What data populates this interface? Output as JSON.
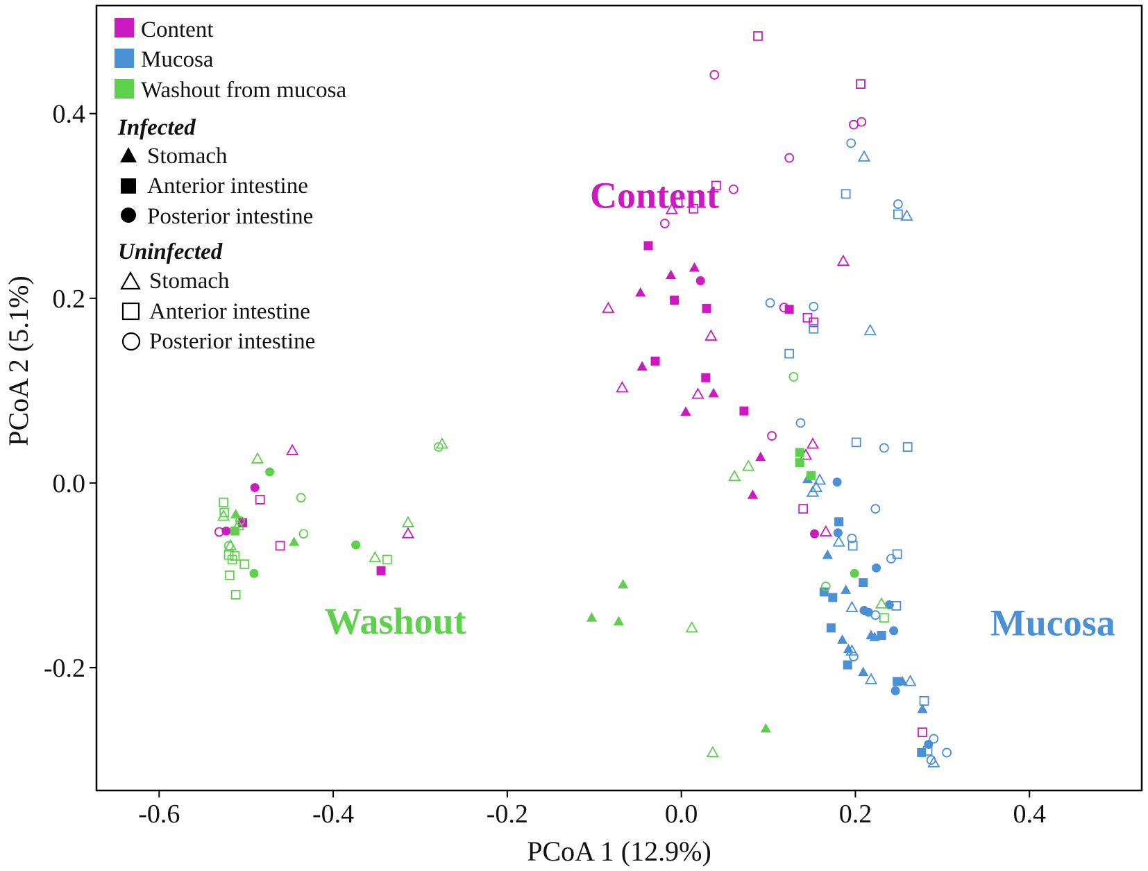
{
  "chart_data": {
    "type": "scatter",
    "title": "",
    "xlabel": "PCoA 1 (12.9%)",
    "ylabel": "PCoA 2 (5.1%)",
    "xlim": [
      -0.672,
      0.529
    ],
    "ylim": [
      -0.333,
      0.517
    ],
    "xticks": [
      -0.6,
      -0.4,
      -0.2,
      0.0,
      0.2,
      0.4
    ],
    "xtick_labels": [
      "-0.6",
      "-0.4",
      "-0.2",
      "0.0",
      "0.2",
      "0.4"
    ],
    "yticks": [
      0.4,
      0.2,
      0.0,
      -0.2
    ],
    "ytick_labels": [
      "0.4",
      "0.2",
      "0.0",
      "-0.2"
    ],
    "grid": false,
    "legend_position": "top-left",
    "colors": {
      "content": "#cc19c0",
      "mucosa": "#4a90d4",
      "washout": "#5fd04e"
    },
    "legend": {
      "groups": [
        {
          "key": "content",
          "label": "Content"
        },
        {
          "key": "mucosa",
          "label": "Mucosa"
        },
        {
          "key": "washout",
          "label": "Washout from mucosa"
        }
      ],
      "infected_title": "Infected",
      "uninfected_title": "Uninfected",
      "infected_items": [
        {
          "shape": "triangle",
          "label": "Stomach"
        },
        {
          "shape": "square",
          "label": "Anterior intestine"
        },
        {
          "shape": "circle",
          "label": "Posterior intestine"
        }
      ],
      "uninfected_items": [
        {
          "shape": "triangle",
          "label": "Stomach"
        },
        {
          "shape": "square",
          "label": "Anterior intestine"
        },
        {
          "shape": "circle",
          "label": "Posterior intestine"
        }
      ]
    },
    "annotations": [
      {
        "text": "Content",
        "group": "content",
        "x": -0.105,
        "y": 0.298
      },
      {
        "text": "Washout",
        "group": "washout",
        "x": -0.41,
        "y": -0.163
      },
      {
        "text": "Mucosa",
        "group": "mucosa",
        "x": 0.355,
        "y": -0.165
      }
    ],
    "series": [
      {
        "group": "content",
        "shape": "triangle",
        "filled": true,
        "points": [
          [
            -0.012,
            0.225
          ],
          [
            0.015,
            0.233
          ],
          [
            -0.047,
            0.206
          ],
          [
            -0.045,
            0.126
          ],
          [
            0.037,
            0.097
          ],
          [
            0.005,
            0.077
          ],
          [
            0.091,
            0.028
          ],
          [
            0.082,
            -0.013
          ]
        ]
      },
      {
        "group": "content",
        "shape": "square",
        "filled": true,
        "points": [
          [
            -0.038,
            0.257
          ],
          [
            -0.008,
            0.198
          ],
          [
            0.029,
            0.189
          ],
          [
            -0.03,
            0.132
          ],
          [
            0.028,
            0.114
          ],
          [
            0.072,
            0.078
          ],
          [
            0.124,
            0.188
          ],
          [
            -0.504,
            -0.043
          ],
          [
            -0.345,
            -0.095
          ]
        ]
      },
      {
        "group": "content",
        "shape": "circle",
        "filled": true,
        "points": [
          [
            0.022,
            0.219
          ],
          [
            0.153,
            -0.055
          ],
          [
            -0.49,
            -0.005
          ],
          [
            -0.523,
            -0.052
          ]
        ]
      },
      {
        "group": "content",
        "shape": "triangle",
        "filled": false,
        "points": [
          [
            -0.084,
            0.189
          ],
          [
            -0.011,
            0.296
          ],
          [
            0.034,
            0.159
          ],
          [
            -0.068,
            0.103
          ],
          [
            0.019,
            0.096
          ],
          [
            0.151,
            0.042
          ],
          [
            0.143,
            0.03
          ],
          [
            0.186,
            0.24
          ],
          [
            0.166,
            -0.053
          ],
          [
            -0.447,
            0.035
          ],
          [
            -0.314,
            -0.055
          ]
        ]
      },
      {
        "group": "content",
        "shape": "square",
        "filled": false,
        "points": [
          [
            0.088,
            0.484
          ],
          [
            0.206,
            0.432
          ],
          [
            -0.004,
            0.303
          ],
          [
            0.014,
            0.297
          ],
          [
            0.04,
            0.322
          ],
          [
            0.145,
            0.179
          ],
          [
            0.152,
            0.174
          ],
          [
            0.14,
            -0.028
          ],
          [
            -0.461,
            -0.068
          ],
          [
            -0.484,
            -0.018
          ],
          [
            0.277,
            -0.27
          ]
        ]
      },
      {
        "group": "content",
        "shape": "circle",
        "filled": false,
        "points": [
          [
            0.038,
            0.442
          ],
          [
            0.198,
            0.388
          ],
          [
            0.207,
            0.391
          ],
          [
            0.124,
            0.352
          ],
          [
            0.06,
            0.318
          ],
          [
            -0.019,
            0.281
          ],
          [
            0.104,
            0.051
          ],
          [
            0.118,
            0.19
          ],
          [
            -0.531,
            -0.053
          ]
        ]
      },
      {
        "group": "mucosa",
        "shape": "triangle",
        "filled": true,
        "points": [
          [
            0.145,
            0.004
          ],
          [
            0.168,
            -0.078
          ],
          [
            0.189,
            -0.116
          ],
          [
            0.185,
            -0.17
          ],
          [
            0.192,
            -0.18
          ],
          [
            0.218,
            -0.165
          ],
          [
            0.222,
            -0.167
          ],
          [
            0.209,
            -0.205
          ],
          [
            0.254,
            -0.215
          ],
          [
            0.277,
            -0.245
          ]
        ]
      },
      {
        "group": "mucosa",
        "shape": "square",
        "filled": true,
        "points": [
          [
            0.181,
            -0.042
          ],
          [
            0.164,
            -0.118
          ],
          [
            0.174,
            -0.124
          ],
          [
            0.209,
            -0.108
          ],
          [
            0.172,
            -0.157
          ],
          [
            0.191,
            -0.197
          ],
          [
            0.23,
            -0.165
          ],
          [
            0.248,
            -0.215
          ],
          [
            0.276,
            -0.292
          ]
        ]
      },
      {
        "group": "mucosa",
        "shape": "circle",
        "filled": true,
        "points": [
          [
            0.179,
            0.001
          ],
          [
            0.18,
            -0.054
          ],
          [
            0.224,
            -0.092
          ],
          [
            0.21,
            -0.138
          ],
          [
            0.215,
            -0.14
          ],
          [
            0.239,
            -0.132
          ],
          [
            0.244,
            -0.16
          ],
          [
            0.246,
            -0.225
          ],
          [
            0.284,
            -0.283
          ]
        ]
      },
      {
        "group": "mucosa",
        "shape": "triangle",
        "filled": false,
        "points": [
          [
            0.21,
            0.353
          ],
          [
            0.259,
            0.289
          ],
          [
            0.217,
            0.165
          ],
          [
            0.159,
            0.003
          ],
          [
            0.151,
            -0.01
          ],
          [
            0.155,
            -0.005
          ],
          [
            0.181,
            -0.064
          ],
          [
            0.196,
            -0.135
          ],
          [
            0.196,
            -0.182
          ],
          [
            0.218,
            -0.213
          ],
          [
            0.263,
            -0.215
          ],
          [
            0.29,
            -0.303
          ]
        ]
      },
      {
        "group": "mucosa",
        "shape": "square",
        "filled": false,
        "points": [
          [
            0.189,
            0.313
          ],
          [
            0.249,
            0.291
          ],
          [
            0.152,
            0.167
          ],
          [
            0.124,
            0.14
          ],
          [
            0.201,
            0.044
          ],
          [
            0.26,
            0.039
          ],
          [
            0.197,
            -0.068
          ],
          [
            0.248,
            -0.077
          ],
          [
            0.247,
            -0.133
          ],
          [
            0.279,
            -0.236
          ],
          [
            0.283,
            -0.29
          ]
        ]
      },
      {
        "group": "mucosa",
        "shape": "circle",
        "filled": false,
        "points": [
          [
            0.195,
            0.368
          ],
          [
            0.249,
            0.302
          ],
          [
            0.102,
            0.195
          ],
          [
            0.152,
            0.191
          ],
          [
            0.137,
            0.065
          ],
          [
            0.233,
            0.038
          ],
          [
            0.223,
            -0.028
          ],
          [
            0.196,
            -0.06
          ],
          [
            0.241,
            -0.082
          ],
          [
            0.223,
            -0.143
          ],
          [
            0.198,
            -0.188
          ],
          [
            0.29,
            -0.277
          ],
          [
            0.287,
            -0.3
          ],
          [
            0.305,
            -0.292
          ]
        ]
      },
      {
        "group": "washout",
        "shape": "triangle",
        "filled": true,
        "points": [
          [
            -0.512,
            -0.034
          ],
          [
            -0.445,
            -0.064
          ],
          [
            -0.103,
            -0.146
          ],
          [
            -0.072,
            -0.15
          ],
          [
            -0.067,
            -0.11
          ],
          [
            0.097,
            -0.266
          ]
        ]
      },
      {
        "group": "washout",
        "shape": "square",
        "filled": true,
        "points": [
          [
            -0.513,
            -0.052
          ],
          [
            0.136,
            0.033
          ],
          [
            0.136,
            0.022
          ],
          [
            0.149,
            0.008
          ]
        ]
      },
      {
        "group": "washout",
        "shape": "circle",
        "filled": true,
        "points": [
          [
            -0.473,
            0.012
          ],
          [
            -0.374,
            -0.067
          ],
          [
            -0.491,
            -0.098
          ],
          [
            0.199,
            -0.098
          ]
        ]
      },
      {
        "group": "washout",
        "shape": "triangle",
        "filled": false,
        "points": [
          [
            -0.487,
            0.026
          ],
          [
            -0.518,
            -0.068
          ],
          [
            -0.509,
            -0.046
          ],
          [
            -0.526,
            -0.036
          ],
          [
            -0.352,
            -0.081
          ],
          [
            -0.314,
            -0.043
          ],
          [
            -0.275,
            0.042
          ],
          [
            0.061,
            0.007
          ],
          [
            0.077,
            0.018
          ],
          [
            0.012,
            -0.157
          ],
          [
            0.036,
            -0.292
          ],
          [
            0.23,
            -0.131
          ]
        ]
      },
      {
        "group": "washout",
        "shape": "square",
        "filled": false,
        "points": [
          [
            -0.526,
            -0.021
          ],
          [
            -0.525,
            -0.032
          ],
          [
            -0.52,
            -0.078
          ],
          [
            -0.513,
            -0.079
          ],
          [
            -0.516,
            -0.083
          ],
          [
            -0.519,
            -0.1
          ],
          [
            -0.512,
            -0.121
          ],
          [
            -0.502,
            -0.088
          ],
          [
            -0.338,
            -0.083
          ],
          [
            0.233,
            -0.146
          ]
        ]
      },
      {
        "group": "washout",
        "shape": "circle",
        "filled": false,
        "points": [
          [
            -0.437,
            -0.016
          ],
          [
            -0.434,
            -0.055
          ],
          [
            -0.279,
            0.039
          ],
          [
            -0.52,
            -0.068
          ],
          [
            -0.507,
            -0.041
          ],
          [
            0.129,
            0.115
          ],
          [
            0.166,
            -0.112
          ]
        ]
      }
    ]
  }
}
